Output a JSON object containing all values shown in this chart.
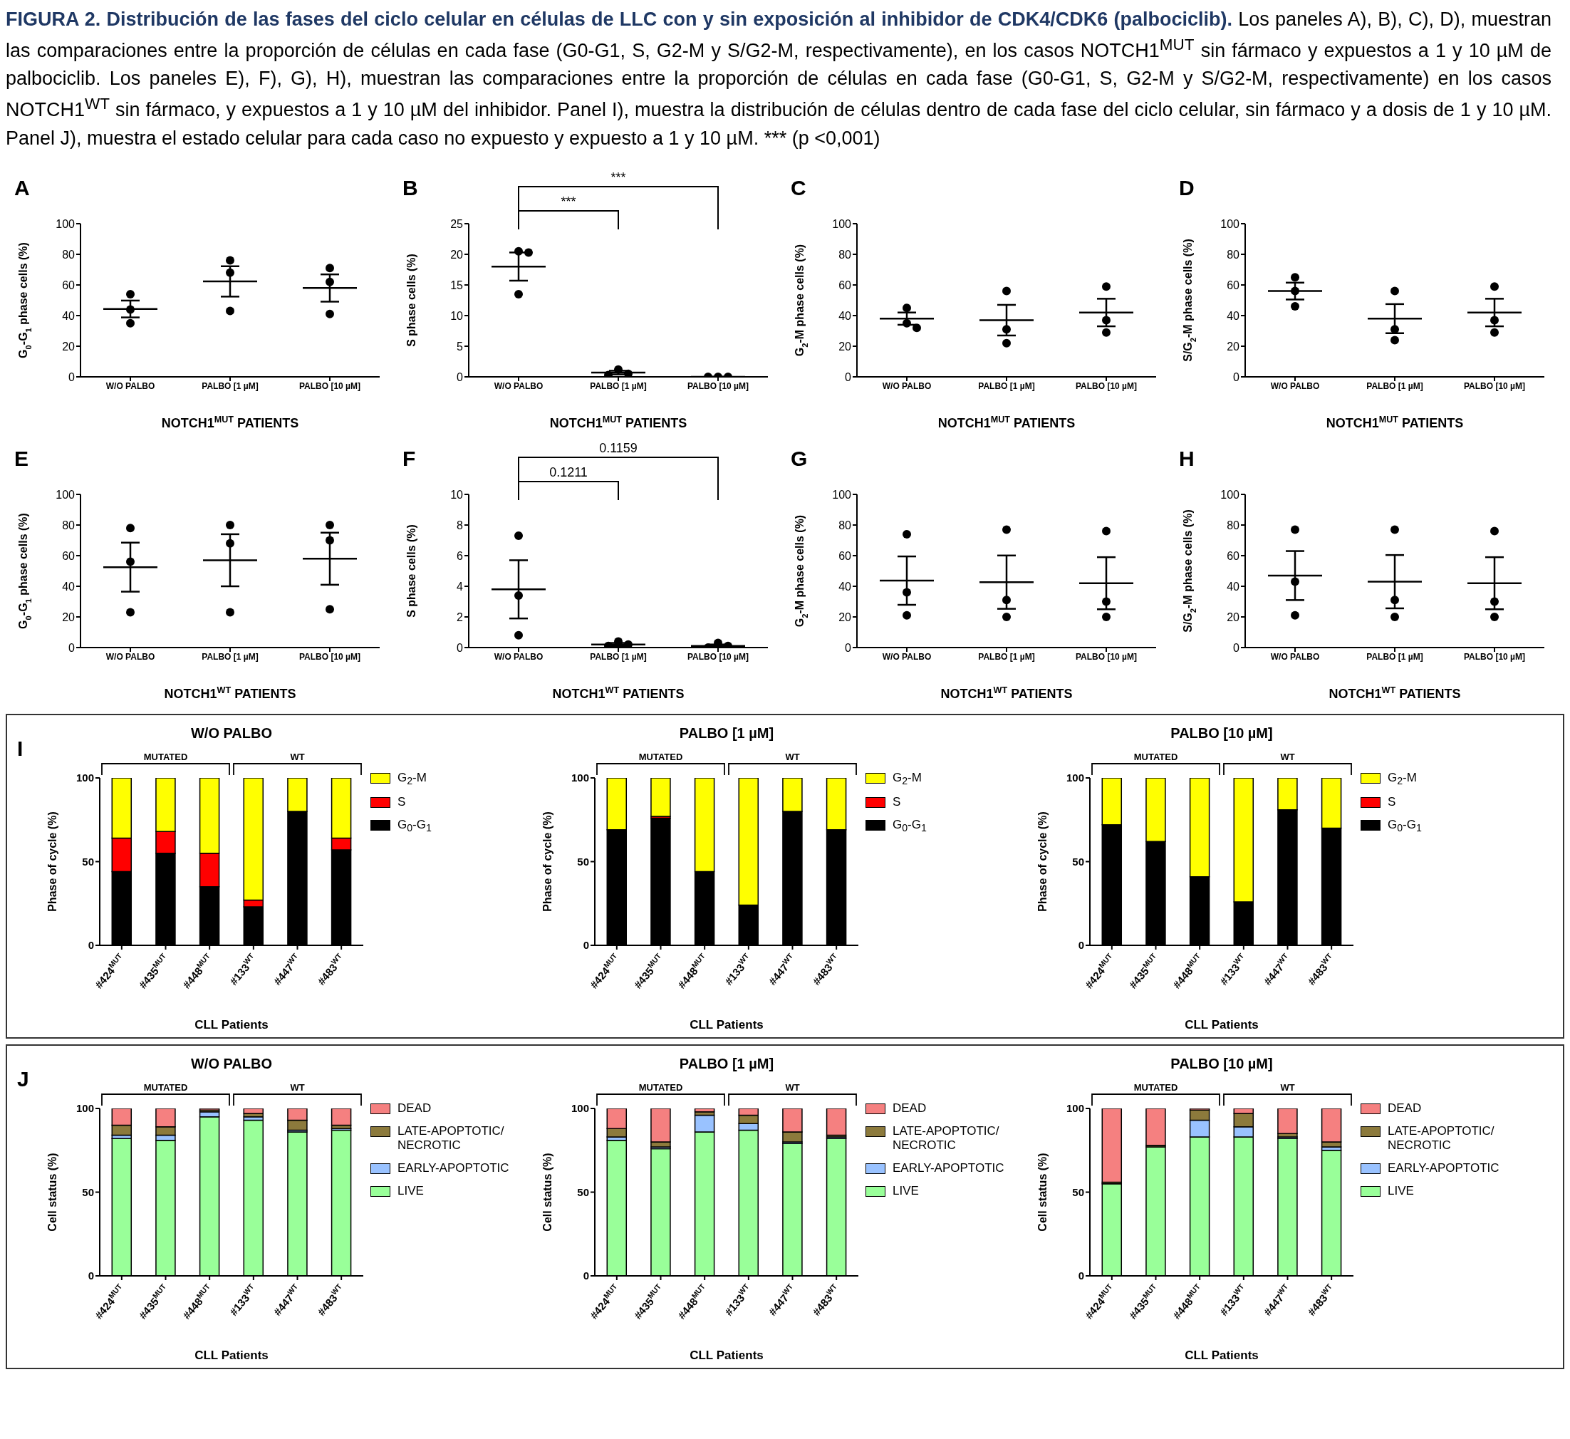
{
  "chart_data": [
    {
      "type": "other",
      "title": "FIGURA 2. Distribución de las fases del ciclo celular en células de LLC con y sin exposición al inhibidor de CDK4/CDK6 (palbociclib).",
      "subtitle": "Los paneles A), B), C), D), muestran las comparaciones entre la proporción de células en cada fase (G0-G1, S, G2-M y S/G2-M, respectivamente), en los casos NOTCH1$^{MUT}$ sin fármaco y expuestos a 1 y 10 µM de palbociclib. Los paneles E), F), G), H),  muestran las comparaciones entre la proporción de células en cada fase (G0-G1, S, G2-M y S/G2-M, respectivamente) en los casos NOTCH1$^{WT}$ sin fármaco, y expuestos a 1 y 10 µM del inhibidor. Panel I), muestra la distribución de células dentro de cada fase del ciclo celular, sin fármaco y a dosis de 1 y 10 µM. Panel J), muestra el estado celular para cada caso no expuesto y expuesto a 1 y 10 µM. *** (p <0,001)"
    },
    {
      "type": "scatter",
      "title": "A",
      "xlabel": "NOTCH1$^{MUT}$ PATIENTS",
      "ylabel": "G$_{0}$-G$_{1}$ phase cells (%)",
      "categories": [
        "W/O PALBO",
        "PALBO [1 µM]",
        "PALBO [10 µM]"
      ],
      "marker": "circle",
      "ylim": [
        0,
        100
      ],
      "yticks": [
        0,
        20,
        40,
        60,
        80,
        100
      ],
      "series": [
        {
          "color": "#000000",
          "x": [
            "W/O PALBO",
            "W/O PALBO",
            "W/O PALBO",
            "PALBO [1 µM]",
            "PALBO [1 µM]",
            "PALBO [1 µM]",
            "PALBO [10 µM]",
            "PALBO [10 µM]",
            "PALBO [10 µM]"
          ],
          "values": [
            54,
            44,
            35,
            76,
            68,
            43,
            71,
            62,
            41
          ]
        },
        {
          "type": "box",
          "color": "#000000",
          "boxes": [
            {
              "low": 38.8,
              "q1": 44.3,
              "median": 44.3,
              "q3": 44.3,
              "high": 49.8
            },
            {
              "low": 52.4,
              "q1": 62.3,
              "median": 62.3,
              "q3": 62.3,
              "high": 72.2
            },
            {
              "low": 49.1,
              "q1": 58,
              "median": 58,
              "q3": 58,
              "high": 66.9
            }
          ]
        }
      ]
    },
    {
      "type": "scatter",
      "title": "B",
      "xlabel": "NOTCH1$^{MUT}$ PATIENTS",
      "ylabel": "S phase cells (%)",
      "categories": [
        "W/O PALBO",
        "PALBO [1 µM]",
        "PALBO [10 µM]"
      ],
      "marker": "circle",
      "ylim": [
        0,
        25
      ],
      "yticks": [
        0,
        5,
        10,
        15,
        20,
        25
      ],
      "annotations": [
        "***",
        "***"
      ],
      "series": [
        {
          "color": "#000000",
          "x": [
            "W/O PALBO",
            "W/O PALBO",
            "W/O PALBO",
            "PALBO [1 µM]",
            "PALBO [1 µM]",
            "PALBO [1 µM]",
            "PALBO [10 µM]",
            "PALBO [10 µM]",
            "PALBO [10 µM]"
          ],
          "values": [
            20.5,
            20.3,
            13.5,
            1.2,
            0.5,
            0.3,
            0,
            0,
            0
          ]
        },
        {
          "type": "box",
          "color": "#000000",
          "boxes": [
            {
              "low": 15.7,
              "q1": 18,
              "median": 18,
              "q3": 18,
              "high": 20.3
            },
            {
              "low": 0.4,
              "q1": 0.7,
              "median": 0.7,
              "q3": 0.7,
              "high": 1.0
            },
            {
              "low": 0,
              "q1": 0,
              "median": 0,
              "q3": 0,
              "high": 0
            }
          ]
        }
      ]
    },
    {
      "type": "scatter",
      "title": "C",
      "xlabel": "NOTCH1$^{MUT}$ PATIENTS",
      "ylabel": "G$_{2}$-M phase cells (%)",
      "categories": [
        "W/O PALBO",
        "PALBO [1 µM]",
        "PALBO [10 µM]"
      ],
      "marker": "circle",
      "ylim": [
        0,
        100
      ],
      "yticks": [
        0,
        20,
        40,
        60,
        80,
        100
      ],
      "series": [
        {
          "color": "#000000",
          "x": [
            "W/O PALBO",
            "W/O PALBO",
            "W/O PALBO",
            "PALBO [1 µM]",
            "PALBO [1 µM]",
            "PALBO [1 µM]",
            "PALBO [10 µM]",
            "PALBO [10 µM]",
            "PALBO [10 µM]"
          ],
          "values": [
            45,
            35,
            32,
            56,
            31,
            22,
            59,
            37,
            29
          ]
        },
        {
          "type": "box",
          "color": "#000000",
          "boxes": [
            {
              "low": 34,
              "q1": 38,
              "median": 38,
              "q3": 38,
              "high": 42
            },
            {
              "low": 27,
              "q1": 37,
              "median": 37,
              "q3": 37,
              "high": 47
            },
            {
              "low": 33,
              "q1": 42,
              "median": 42,
              "q3": 42,
              "high": 51
            }
          ]
        }
      ]
    },
    {
      "type": "scatter",
      "title": "D",
      "xlabel": "NOTCH1$^{MUT}$ PATIENTS",
      "ylabel": "S/G$_{2}$-M phase cells (%)",
      "categories": [
        "W/O PALBO",
        "PALBO [1 µM]",
        "PALBO [10 µM]"
      ],
      "marker": "circle",
      "ylim": [
        0,
        100
      ],
      "yticks": [
        0,
        20,
        40,
        60,
        80,
        100
      ],
      "series": [
        {
          "color": "#000000",
          "x": [
            "W/O PALBO",
            "W/O PALBO",
            "W/O PALBO",
            "PALBO [1 µM]",
            "PALBO [1 µM]",
            "PALBO [1 µM]",
            "PALBO [10 µM]",
            "PALBO [10 µM]",
            "PALBO [10 µM]"
          ],
          "values": [
            65,
            56,
            46,
            56,
            31,
            24,
            59,
            37,
            29
          ]
        },
        {
          "type": "box",
          "color": "#000000",
          "boxes": [
            {
              "low": 50.5,
              "q1": 56,
              "median": 56,
              "q3": 56,
              "high": 61.5
            },
            {
              "low": 28.5,
              "q1": 38,
              "median": 38,
              "q3": 38,
              "high": 47.5
            },
            {
              "low": 33,
              "q1": 42,
              "median": 42,
              "q3": 42,
              "high": 51
            }
          ]
        }
      ]
    },
    {
      "type": "scatter",
      "title": "E",
      "xlabel": "NOTCH1$^{WT}$ PATIENTS",
      "ylabel": "G$_{0}$-G$_{1}$ phase cells (%)",
      "categories": [
        "W/O PALBO",
        "PALBO [1 µM]",
        "PALBO [10 µM]"
      ],
      "marker": "circle",
      "ylim": [
        0,
        100
      ],
      "yticks": [
        0,
        20,
        40,
        60,
        80,
        100
      ],
      "series": [
        {
          "color": "#000000",
          "x": [
            "W/O PALBO",
            "W/O PALBO",
            "W/O PALBO",
            "PALBO [1 µM]",
            "PALBO [1 µM]",
            "PALBO [1 µM]",
            "PALBO [10 µM]",
            "PALBO [10 µM]",
            "PALBO [10 µM]"
          ],
          "values": [
            78,
            56,
            23,
            80,
            68,
            23,
            80,
            70,
            25
          ]
        },
        {
          "type": "box",
          "color": "#000000",
          "boxes": [
            {
              "low": 36.5,
              "q1": 52.5,
              "median": 52.5,
              "q3": 52.5,
              "high": 68.5
            },
            {
              "low": 40,
              "q1": 57,
              "median": 57,
              "q3": 57,
              "high": 74
            },
            {
              "low": 41,
              "q1": 58,
              "median": 58,
              "q3": 58,
              "high": 75
            }
          ]
        }
      ]
    },
    {
      "type": "scatter",
      "title": "F",
      "xlabel": "NOTCH1$^{WT}$ PATIENTS",
      "ylabel": "S phase cells (%)",
      "categories": [
        "W/O PALBO",
        "PALBO [1 µM]",
        "PALBO [10 µM]"
      ],
      "marker": "circle",
      "ylim": [
        0,
        10
      ],
      "yticks": [
        0,
        2,
        4,
        6,
        8,
        10
      ],
      "annotations": [
        "0.1211",
        "0.1159"
      ],
      "series": [
        {
          "color": "#000000",
          "x": [
            "W/O PALBO",
            "W/O PALBO",
            "W/O PALBO",
            "PALBO [1 µM]",
            "PALBO [1 µM]",
            "PALBO [1 µM]",
            "PALBO [10 µM]",
            "PALBO [10 µM]",
            "PALBO [10 µM]"
          ],
          "values": [
            7.3,
            3.4,
            0.8,
            0.4,
            0.2,
            0.1,
            0.3,
            0.1,
            0
          ]
        },
        {
          "type": "box",
          "color": "#000000",
          "boxes": [
            {
              "low": 1.9,
              "q1": 3.8,
              "median": 3.8,
              "q3": 3.8,
              "high": 5.7
            },
            {
              "low": 0.1,
              "q1": 0.2,
              "median": 0.2,
              "q3": 0.2,
              "high": 0.3
            },
            {
              "low": 0,
              "q1": 0.1,
              "median": 0.1,
              "q3": 0.1,
              "high": 0.2
            }
          ]
        }
      ]
    },
    {
      "type": "scatter",
      "title": "G",
      "xlabel": "NOTCH1$^{WT}$ PATIENTS",
      "ylabel": "G$_{2}$-M phase cells (%)",
      "categories": [
        "W/O PALBO",
        "PALBO [1 µM]",
        "PALBO [10 µM]"
      ],
      "marker": "circle",
      "ylim": [
        0,
        100
      ],
      "yticks": [
        0,
        20,
        40,
        60,
        80,
        100
      ],
      "series": [
        {
          "color": "#000000",
          "x": [
            "W/O PALBO",
            "W/O PALBO",
            "W/O PALBO",
            "PALBO [1 µM]",
            "PALBO [1 µM]",
            "PALBO [1 µM]",
            "PALBO [10 µM]",
            "PALBO [10 µM]",
            "PALBO [10 µM]"
          ],
          "values": [
            74,
            36,
            21,
            77,
            31,
            20,
            76,
            30,
            20
          ]
        },
        {
          "type": "box",
          "color": "#000000",
          "boxes": [
            {
              "low": 27.9,
              "q1": 43.7,
              "median": 43.7,
              "q3": 43.7,
              "high": 59.5
            },
            {
              "low": 25.3,
              "q1": 42.7,
              "median": 42.7,
              "q3": 42.7,
              "high": 60.1
            },
            {
              "low": 25,
              "q1": 42,
              "median": 42,
              "q3": 42,
              "high": 59
            }
          ]
        }
      ]
    },
    {
      "type": "scatter",
      "title": "H",
      "xlabel": "NOTCH1$^{WT}$ PATIENTS",
      "ylabel": "S/G$_{2}$-M phase cells (%)",
      "categories": [
        "W/O PALBO",
        "PALBO [1 µM]",
        "PALBO [10 µM]"
      ],
      "marker": "circle",
      "ylim": [
        0,
        100
      ],
      "yticks": [
        0,
        20,
        40,
        60,
        80,
        100
      ],
      "series": [
        {
          "color": "#000000",
          "x": [
            "W/O PALBO",
            "W/O PALBO",
            "W/O PALBO",
            "PALBO [1 µM]",
            "PALBO [1 µM]",
            "PALBO [1 µM]",
            "PALBO [10 µM]",
            "PALBO [10 µM]",
            "PALBO [10 µM]"
          ],
          "values": [
            77,
            43,
            21,
            77,
            31,
            20,
            76,
            30,
            20
          ]
        },
        {
          "type": "box",
          "color": "#000000",
          "boxes": [
            {
              "low": 31,
              "q1": 47,
              "median": 47,
              "q3": 47,
              "high": 63
            },
            {
              "low": 25.6,
              "q1": 43,
              "median": 43,
              "q3": 43,
              "high": 60.4
            },
            {
              "low": 25,
              "q1": 42,
              "median": 42,
              "q3": 42,
              "high": 59
            }
          ]
        }
      ]
    },
    {
      "type": "other",
      "title": "I"
    },
    {
      "type": "bar",
      "stacked": true,
      "title": "W/O PALBO",
      "xlabel": "CLL Patients",
      "ylabel": "Phase of cycle (%)",
      "legend": "right",
      "annotations": [
        "MUTATED",
        "WT"
      ],
      "categories": [
        "#424$^{MUT}$",
        "#435$^{MUT}$",
        "#448$^{MUT}$",
        "#133$^{WT}$",
        "#447$^{WT}$",
        "#483$^{WT}$"
      ],
      "ylim": [
        0,
        100
      ],
      "yticks": [
        0,
        50,
        100
      ],
      "series": [
        {
          "name": "G$_{0}$-G$_{1}$",
          "color": "#000000",
          "values": [
            44,
            55,
            35,
            23,
            80,
            57
          ]
        },
        {
          "name": "S",
          "color": "#ff0000",
          "values": [
            20,
            13,
            20,
            4,
            0,
            7
          ]
        },
        {
          "name": "G$_{2}$-M",
          "color": "#ffff00",
          "values": [
            36,
            32,
            45,
            73,
            20,
            36
          ]
        }
      ]
    },
    {
      "type": "bar",
      "stacked": true,
      "title": "PALBO [1 µM]",
      "xlabel": "CLL Patients",
      "ylabel": "Phase of cycle (%)",
      "legend": "right",
      "annotations": [
        "MUTATED",
        "WT"
      ],
      "categories": [
        "#424$^{MUT}$",
        "#435$^{MUT}$",
        "#448$^{MUT}$",
        "#133$^{WT}$",
        "#447$^{WT}$",
        "#483$^{WT}$"
      ],
      "ylim": [
        0,
        100
      ],
      "yticks": [
        0,
        50,
        100
      ],
      "series": [
        {
          "name": "G$_{0}$-G$_{1}$",
          "color": "#000000",
          "values": [
            69,
            76,
            44,
            24,
            80,
            69
          ]
        },
        {
          "name": "S",
          "color": "#ff0000",
          "values": [
            0,
            1,
            0,
            0,
            0,
            0
          ]
        },
        {
          "name": "G$_{2}$-M",
          "color": "#ffff00",
          "values": [
            31,
            23,
            56,
            76,
            20,
            31
          ]
        }
      ]
    },
    {
      "type": "bar",
      "stacked": true,
      "title": "PALBO [10 µM]",
      "xlabel": "CLL Patients",
      "ylabel": "Phase of cycle (%)",
      "legend": "right",
      "annotations": [
        "MUTATED",
        "WT"
      ],
      "categories": [
        "#424$^{MUT}$",
        "#435$^{MUT}$",
        "#448$^{MUT}$",
        "#133$^{WT}$",
        "#447$^{WT}$",
        "#483$^{WT}$"
      ],
      "ylim": [
        0,
        100
      ],
      "yticks": [
        0,
        50,
        100
      ],
      "series": [
        {
          "name": "G$_{0}$-G$_{1}$",
          "color": "#000000",
          "values": [
            72,
            62,
            41,
            26,
            81,
            70
          ]
        },
        {
          "name": "S",
          "color": "#ff0000",
          "values": [
            0,
            0,
            0,
            0,
            0,
            0
          ]
        },
        {
          "name": "G$_{2}$-M",
          "color": "#ffff00",
          "values": [
            28,
            38,
            59,
            74,
            19,
            30
          ]
        }
      ]
    },
    {
      "type": "other",
      "title": "J"
    },
    {
      "type": "bar",
      "stacked": true,
      "title": "W/O PALBO",
      "xlabel": "CLL Patients",
      "ylabel": "Cell status (%)",
      "legend": "right",
      "annotations": [
        "MUTATED",
        "WT"
      ],
      "categories": [
        "#424$^{MUT}$",
        "#435$^{MUT}$",
        "#448$^{MUT}$",
        "#133$^{WT}$",
        "#447$^{WT}$",
        "#483$^{WT}$"
      ],
      "ylim": [
        0,
        100
      ],
      "yticks": [
        0,
        50,
        100
      ],
      "series": [
        {
          "name": "LIVE",
          "color": "#99ff99",
          "values": [
            82,
            81,
            95,
            93,
            86,
            87
          ]
        },
        {
          "name": "EARLY-APOPTOTIC",
          "color": "#99c2ff",
          "values": [
            2,
            3,
            3,
            2,
            1,
            1
          ]
        },
        {
          "name": "LATE-APOPTOTIC/ NECROTIC",
          "color": "#8c7a3c",
          "values": [
            6,
            5,
            1,
            2,
            6,
            2
          ]
        },
        {
          "name": "DEAD",
          "color": "#f58080",
          "values": [
            10,
            11,
            1,
            3,
            7,
            10
          ]
        }
      ]
    },
    {
      "type": "bar",
      "stacked": true,
      "title": "PALBO [1 µM]",
      "xlabel": "CLL Patients",
      "ylabel": "Cell status (%)",
      "legend": "right",
      "annotations": [
        "MUTATED",
        "WT"
      ],
      "categories": [
        "#424$^{MUT}$",
        "#435$^{MUT}$",
        "#448$^{MUT}$",
        "#133$^{WT}$",
        "#447$^{WT}$",
        "#483$^{WT}$"
      ],
      "ylim": [
        0,
        100
      ],
      "yticks": [
        0,
        50,
        100
      ],
      "series": [
        {
          "name": "LIVE",
          "color": "#99ff99",
          "values": [
            81,
            76,
            86,
            87,
            79,
            82
          ]
        },
        {
          "name": "EARLY-APOPTOTIC",
          "color": "#99c2ff",
          "values": [
            2,
            1,
            10,
            4,
            1,
            1
          ]
        },
        {
          "name": "LATE-APOPTOTIC/ NECROTIC",
          "color": "#8c7a3c",
          "values": [
            5,
            3,
            2,
            5,
            6,
            1
          ]
        },
        {
          "name": "DEAD",
          "color": "#f58080",
          "values": [
            12,
            20,
            2,
            4,
            14,
            16
          ]
        }
      ]
    },
    {
      "type": "bar",
      "stacked": true,
      "title": "PALBO [10 µM]",
      "xlabel": "CLL Patients",
      "ylabel": "Cell status (%)",
      "legend": "right",
      "annotations": [
        "MUTATED",
        "WT"
      ],
      "categories": [
        "#424$^{MUT}$",
        "#435$^{MUT}$",
        "#448$^{MUT}$",
        "#133$^{WT}$",
        "#447$^{WT}$",
        "#483$^{WT}$"
      ],
      "ylim": [
        0,
        100
      ],
      "yticks": [
        0,
        50,
        100
      ],
      "series": [
        {
          "name": "LIVE",
          "color": "#99ff99",
          "values": [
            55,
            77,
            83,
            83,
            82,
            75
          ]
        },
        {
          "name": "EARLY-APOPTOTIC",
          "color": "#99c2ff",
          "values": [
            0,
            0,
            10,
            6,
            1,
            2
          ]
        },
        {
          "name": "LATE-APOPTOTIC/ NECROTIC",
          "color": "#8c7a3c",
          "values": [
            1,
            1,
            6,
            8,
            2,
            3
          ]
        },
        {
          "name": "DEAD",
          "color": "#f58080",
          "values": [
            44,
            22,
            1,
            3,
            15,
            20
          ]
        }
      ]
    }
  ]
}
